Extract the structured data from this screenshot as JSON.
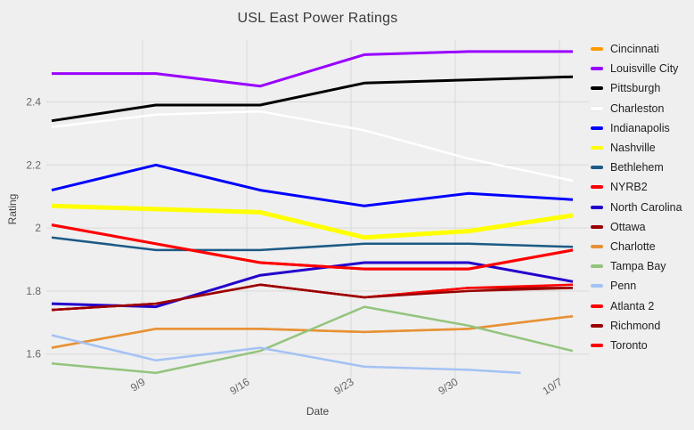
{
  "chart_data": {
    "type": "line",
    "title": "USL East Power Ratings",
    "xlabel": "Date",
    "ylabel": "Rating",
    "x_tick_labels": [
      "9/9",
      "9/16",
      "9/23",
      "9/30",
      "10/7"
    ],
    "y_ticks": [
      1.6,
      1.8,
      2.0,
      2.2,
      2.4
    ],
    "y_tick_labels": [
      "1.6",
      "1.8",
      "2",
      "2.2",
      "2.4"
    ],
    "ylim": [
      1.53,
      2.6
    ],
    "points_per_series": 6,
    "grid": true,
    "legend_position": "right",
    "background": "#efefef",
    "gridline_color": "#d9d9d9",
    "series": [
      {
        "name": "Cincinnati",
        "color": "#ff9900",
        "stroke_width": 2.5,
        "values": [
          1.62,
          1.68,
          1.68,
          1.67,
          1.68,
          1.72
        ]
      },
      {
        "name": "Louisville City",
        "color": "#9900ff",
        "stroke_width": 3,
        "values": [
          2.49,
          2.49,
          2.45,
          2.55,
          2.56,
          2.56
        ]
      },
      {
        "name": "Pittsburgh",
        "color": "#000000",
        "stroke_width": 3,
        "values": [
          2.34,
          2.39,
          2.39,
          2.46,
          2.47,
          2.48
        ]
      },
      {
        "name": "Charleston",
        "color": "#ffffff",
        "stroke_width": 2.5,
        "values": [
          2.32,
          2.36,
          2.37,
          2.31,
          2.22,
          2.15
        ]
      },
      {
        "name": "Indianapolis",
        "color": "#0000ff",
        "stroke_width": 3,
        "values": [
          2.12,
          2.2,
          2.12,
          2.07,
          2.11,
          2.09
        ]
      },
      {
        "name": "Nashville",
        "color": "#ffff00",
        "stroke_width": 5,
        "values": [
          2.07,
          2.06,
          2.05,
          1.97,
          1.99,
          2.04
        ]
      },
      {
        "name": "Bethlehem",
        "color": "#1c5a85",
        "stroke_width": 2.5,
        "values": [
          1.97,
          1.93,
          1.93,
          1.95,
          1.95,
          1.94
        ]
      },
      {
        "name": "NYRB2",
        "color": "#ff0000",
        "stroke_width": 3,
        "values": [
          2.01,
          1.95,
          1.89,
          1.87,
          1.87,
          1.93
        ]
      },
      {
        "name": "North Carolina",
        "color": "#2200cc",
        "stroke_width": 3,
        "values": [
          1.76,
          1.75,
          1.85,
          1.89,
          1.89,
          1.83
        ]
      },
      {
        "name": "Ottawa",
        "color": "#990000",
        "stroke_width": 2.5,
        "values": [
          1.74,
          1.76,
          1.82,
          1.78,
          1.81,
          1.81
        ]
      },
      {
        "name": "Charlotte",
        "color": "#e69138",
        "stroke_width": 2.5,
        "values": [
          1.62,
          1.68,
          1.68,
          1.67,
          1.68,
          1.72
        ]
      },
      {
        "name": "Tampa Bay",
        "color": "#93c47d",
        "stroke_width": 2.5,
        "values": [
          1.57,
          1.54,
          1.61,
          1.75,
          1.69,
          1.61
        ]
      },
      {
        "name": "Penn",
        "color": "#a4c2f4",
        "stroke_width": 2.5,
        "values": [
          1.66,
          1.58,
          1.62,
          1.56,
          1.55,
          1.54
        ],
        "x": [
          0,
          1,
          2,
          3,
          4,
          4.5
        ]
      },
      {
        "name": "Atlanta 2",
        "color": "#ff0000",
        "stroke_width": 2.5,
        "values": [
          1.74,
          1.76,
          1.82,
          1.78,
          1.81,
          1.82
        ]
      },
      {
        "name": "Richmond",
        "color": "#990000",
        "stroke_width": 2.5,
        "values": [
          1.74,
          1.76,
          1.82,
          1.78,
          1.8,
          1.81
        ]
      },
      {
        "name": "Toronto",
        "color": "#ff0000",
        "stroke_width": 3,
        "values": [
          2.01,
          1.95,
          1.89,
          1.87,
          1.87,
          1.93
        ]
      }
    ]
  }
}
